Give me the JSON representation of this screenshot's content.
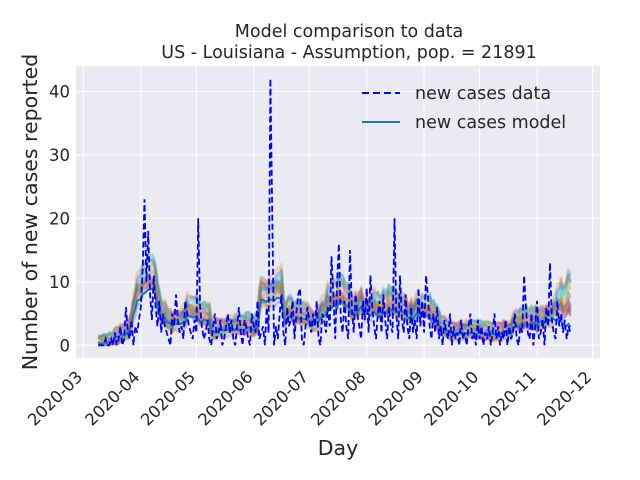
{
  "chart_data": {
    "type": "line",
    "title_lines": [
      "Model comparison to data",
      "US - Louisiana - Assumption, pop. = 21891"
    ],
    "xlabel": "Day",
    "ylabel": "Number of new cases reported",
    "x_ticks": [
      "2020-03",
      "2020-04",
      "2020-05",
      "2020-06",
      "2020-07",
      "2020-08",
      "2020-09",
      "2020-10",
      "2020-11",
      "2020-12"
    ],
    "x_tick_days": [
      0,
      31,
      61,
      92,
      122,
      153,
      184,
      214,
      245,
      275
    ],
    "xlim": [
      -4,
      279
    ],
    "y_ticks": [
      0,
      10,
      20,
      30,
      40
    ],
    "ylim": [
      -2,
      44
    ],
    "grid": true,
    "legend_position": "top-right",
    "series": [
      {
        "name": "new cases data",
        "style": "dashed",
        "color": "#0000ff",
        "x_start": "2020-03-09",
        "values": [
          0,
          0,
          0,
          0,
          1,
          0,
          0,
          1,
          0,
          2,
          0,
          1,
          3,
          0,
          1,
          6,
          2,
          1,
          4,
          0,
          3,
          2,
          4,
          6,
          12,
          23,
          10,
          18,
          8,
          4,
          11,
          6,
          3,
          7,
          2,
          5,
          3,
          2,
          1,
          0,
          5,
          3,
          8,
          4,
          2,
          3,
          1,
          7,
          5,
          3,
          2,
          1,
          4,
          2,
          20,
          6,
          3,
          1,
          2,
          4,
          1,
          0,
          3,
          5,
          1,
          2,
          4,
          0,
          1,
          3,
          5,
          2,
          4,
          1,
          0,
          3,
          6,
          2,
          0,
          4,
          3,
          1,
          0,
          5,
          3,
          2,
          7,
          1,
          2,
          3,
          0,
          6,
          2,
          42,
          20,
          0,
          3,
          1,
          5,
          8,
          2,
          0,
          6,
          3,
          4,
          7,
          1,
          5,
          8,
          9,
          1,
          0,
          3,
          6,
          4,
          2,
          5,
          3,
          7,
          1,
          0,
          5,
          4,
          2,
          6,
          3,
          14,
          8,
          1,
          10,
          16,
          4,
          2,
          7,
          3,
          1,
          15,
          6,
          2,
          8,
          5,
          3,
          1,
          7,
          4,
          9,
          2,
          11,
          6,
          3,
          1,
          5,
          7,
          2,
          8,
          4,
          1,
          6,
          3,
          2,
          20,
          5,
          1,
          11,
          4,
          2,
          8,
          3,
          1,
          6,
          2,
          4,
          1,
          9,
          3,
          7,
          2,
          11,
          8,
          3,
          1,
          5,
          2,
          6,
          1,
          3,
          0,
          4,
          2,
          1,
          5,
          0,
          3,
          1,
          2,
          0,
          4,
          1,
          2,
          0,
          3,
          5,
          1,
          2,
          0,
          4,
          1,
          3,
          0,
          2,
          1,
          3,
          0,
          2,
          5,
          1,
          3,
          0,
          2,
          1,
          4,
          0,
          3,
          1,
          2,
          5,
          1,
          0,
          3,
          2,
          11,
          6,
          2,
          1,
          5,
          0,
          3,
          7,
          1,
          2,
          4,
          0,
          6,
          3,
          13,
          4,
          2,
          1,
          7,
          3,
          5,
          2,
          4,
          1,
          3,
          2
        ]
      },
      {
        "name": "new cases model",
        "style": "solid",
        "color": "#1f77b4"
      }
    ]
  }
}
